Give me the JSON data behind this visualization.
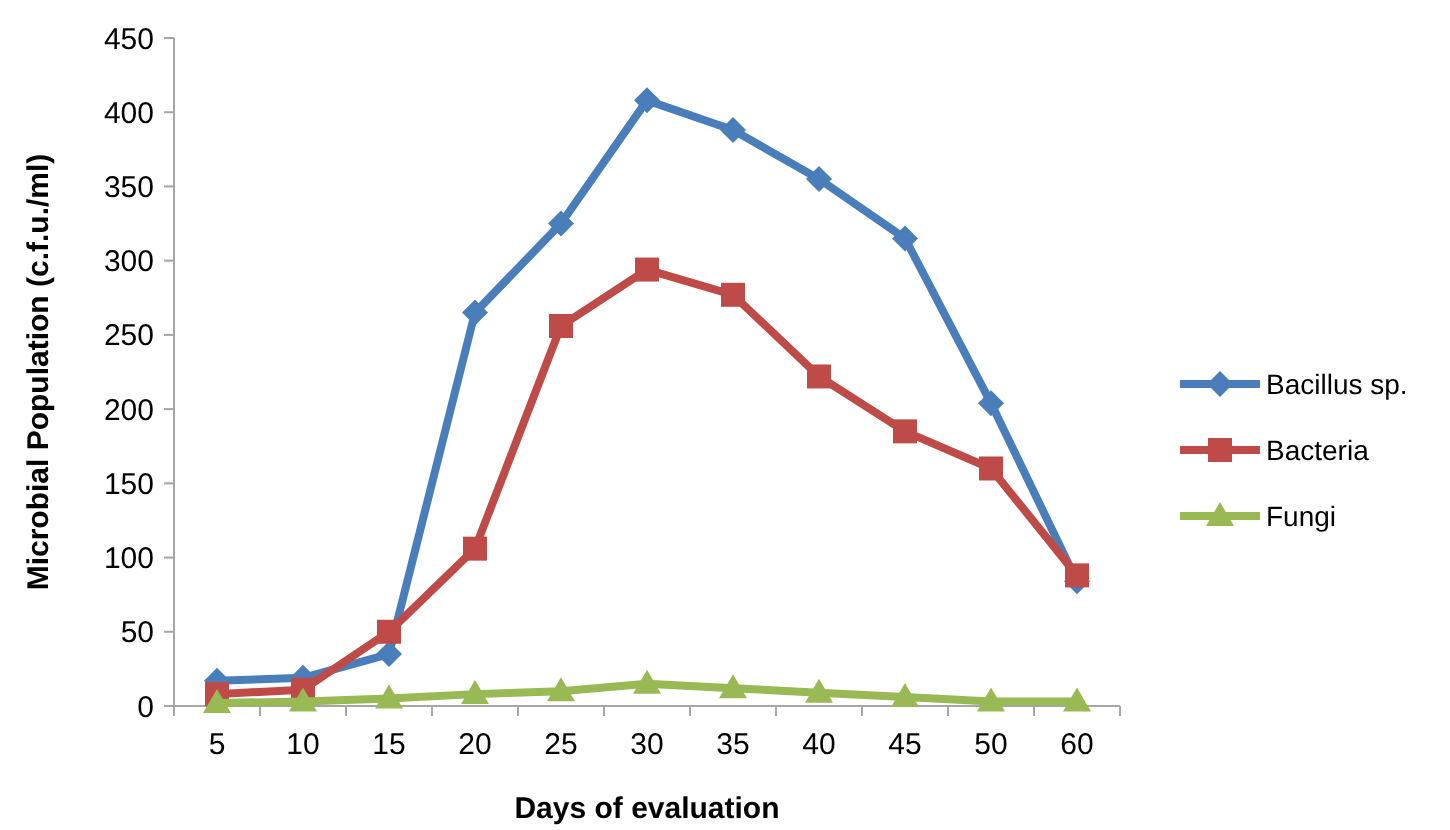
{
  "chart_data": {
    "type": "line",
    "xlabel": "Days of evaluation",
    "ylabel": "Microbial Population (c.f.u./ml)",
    "categories": [
      "5",
      "10",
      "15",
      "20",
      "25",
      "30",
      "35",
      "40",
      "45",
      "50",
      "60"
    ],
    "series": [
      {
        "name": "Bacillus sp.",
        "color": "#4a7ebb",
        "marker": "diamond",
        "values": [
          17,
          19,
          35,
          265,
          325,
          408,
          388,
          355,
          315,
          204,
          84
        ]
      },
      {
        "name": "Bacteria",
        "color": "#be4b48",
        "marker": "square",
        "values": [
          8,
          11,
          50,
          106,
          256,
          294,
          277,
          222,
          185,
          160,
          88
        ]
      },
      {
        "name": "Fungi",
        "color": "#98b954",
        "marker": "triangle",
        "values": [
          2,
          3,
          5,
          8,
          10,
          15,
          12,
          9,
          6,
          3,
          3
        ]
      }
    ],
    "ylim": [
      0,
      450
    ],
    "yticks": [
      0,
      50,
      100,
      150,
      200,
      250,
      300,
      350,
      400,
      450
    ],
    "grid": false,
    "legend": "right",
    "line_style": "solid"
  }
}
